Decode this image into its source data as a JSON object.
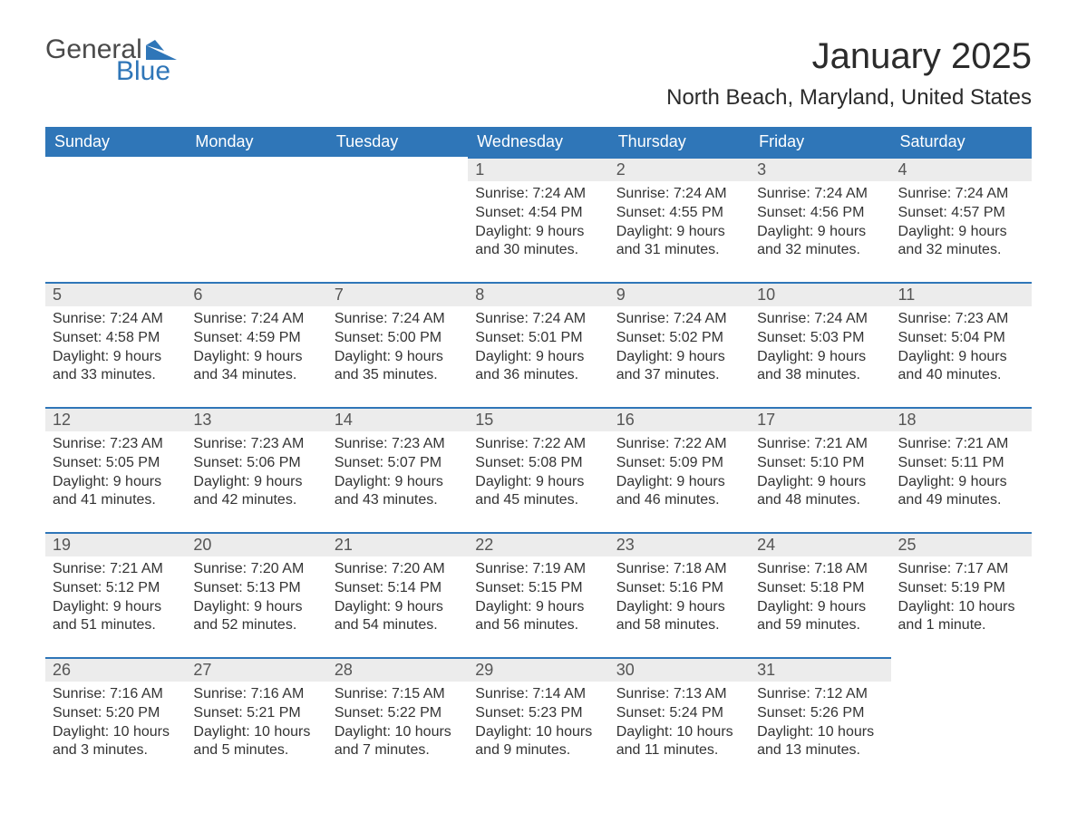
{
  "logo": {
    "text_a": "General",
    "text_b": "Blue"
  },
  "header": {
    "month_title": "January 2025",
    "location": "North Beach, Maryland, United States"
  },
  "colors": {
    "header_bg": "#2f76b8",
    "header_text": "#ffffff",
    "daynum_bg": "#ececec",
    "daynum_border": "#2f76b8",
    "body_text": "#333333",
    "logo_gray": "#4a4a4a",
    "logo_blue": "#2f76b8",
    "page_bg": "#ffffff"
  },
  "weekdays": [
    "Sunday",
    "Monday",
    "Tuesday",
    "Wednesday",
    "Thursday",
    "Friday",
    "Saturday"
  ],
  "labels": {
    "sunrise": "Sunrise: ",
    "sunset": "Sunset: ",
    "daylight": "Daylight: "
  },
  "weeks": [
    [
      null,
      null,
      null,
      {
        "n": "1",
        "sr": "7:24 AM",
        "ss": "4:54 PM",
        "dl": "9 hours and 30 minutes."
      },
      {
        "n": "2",
        "sr": "7:24 AM",
        "ss": "4:55 PM",
        "dl": "9 hours and 31 minutes."
      },
      {
        "n": "3",
        "sr": "7:24 AM",
        "ss": "4:56 PM",
        "dl": "9 hours and 32 minutes."
      },
      {
        "n": "4",
        "sr": "7:24 AM",
        "ss": "4:57 PM",
        "dl": "9 hours and 32 minutes."
      }
    ],
    [
      {
        "n": "5",
        "sr": "7:24 AM",
        "ss": "4:58 PM",
        "dl": "9 hours and 33 minutes."
      },
      {
        "n": "6",
        "sr": "7:24 AM",
        "ss": "4:59 PM",
        "dl": "9 hours and 34 minutes."
      },
      {
        "n": "7",
        "sr": "7:24 AM",
        "ss": "5:00 PM",
        "dl": "9 hours and 35 minutes."
      },
      {
        "n": "8",
        "sr": "7:24 AM",
        "ss": "5:01 PM",
        "dl": "9 hours and 36 minutes."
      },
      {
        "n": "9",
        "sr": "7:24 AM",
        "ss": "5:02 PM",
        "dl": "9 hours and 37 minutes."
      },
      {
        "n": "10",
        "sr": "7:24 AM",
        "ss": "5:03 PM",
        "dl": "9 hours and 38 minutes."
      },
      {
        "n": "11",
        "sr": "7:23 AM",
        "ss": "5:04 PM",
        "dl": "9 hours and 40 minutes."
      }
    ],
    [
      {
        "n": "12",
        "sr": "7:23 AM",
        "ss": "5:05 PM",
        "dl": "9 hours and 41 minutes."
      },
      {
        "n": "13",
        "sr": "7:23 AM",
        "ss": "5:06 PM",
        "dl": "9 hours and 42 minutes."
      },
      {
        "n": "14",
        "sr": "7:23 AM",
        "ss": "5:07 PM",
        "dl": "9 hours and 43 minutes."
      },
      {
        "n": "15",
        "sr": "7:22 AM",
        "ss": "5:08 PM",
        "dl": "9 hours and 45 minutes."
      },
      {
        "n": "16",
        "sr": "7:22 AM",
        "ss": "5:09 PM",
        "dl": "9 hours and 46 minutes."
      },
      {
        "n": "17",
        "sr": "7:21 AM",
        "ss": "5:10 PM",
        "dl": "9 hours and 48 minutes."
      },
      {
        "n": "18",
        "sr": "7:21 AM",
        "ss": "5:11 PM",
        "dl": "9 hours and 49 minutes."
      }
    ],
    [
      {
        "n": "19",
        "sr": "7:21 AM",
        "ss": "5:12 PM",
        "dl": "9 hours and 51 minutes."
      },
      {
        "n": "20",
        "sr": "7:20 AM",
        "ss": "5:13 PM",
        "dl": "9 hours and 52 minutes."
      },
      {
        "n": "21",
        "sr": "7:20 AM",
        "ss": "5:14 PM",
        "dl": "9 hours and 54 minutes."
      },
      {
        "n": "22",
        "sr": "7:19 AM",
        "ss": "5:15 PM",
        "dl": "9 hours and 56 minutes."
      },
      {
        "n": "23",
        "sr": "7:18 AM",
        "ss": "5:16 PM",
        "dl": "9 hours and 58 minutes."
      },
      {
        "n": "24",
        "sr": "7:18 AM",
        "ss": "5:18 PM",
        "dl": "9 hours and 59 minutes."
      },
      {
        "n": "25",
        "sr": "7:17 AM",
        "ss": "5:19 PM",
        "dl": "10 hours and 1 minute."
      }
    ],
    [
      {
        "n": "26",
        "sr": "7:16 AM",
        "ss": "5:20 PM",
        "dl": "10 hours and 3 minutes."
      },
      {
        "n": "27",
        "sr": "7:16 AM",
        "ss": "5:21 PM",
        "dl": "10 hours and 5 minutes."
      },
      {
        "n": "28",
        "sr": "7:15 AM",
        "ss": "5:22 PM",
        "dl": "10 hours and 7 minutes."
      },
      {
        "n": "29",
        "sr": "7:14 AM",
        "ss": "5:23 PM",
        "dl": "10 hours and 9 minutes."
      },
      {
        "n": "30",
        "sr": "7:13 AM",
        "ss": "5:24 PM",
        "dl": "10 hours and 11 minutes."
      },
      {
        "n": "31",
        "sr": "7:12 AM",
        "ss": "5:26 PM",
        "dl": "10 hours and 13 minutes."
      },
      null
    ]
  ]
}
